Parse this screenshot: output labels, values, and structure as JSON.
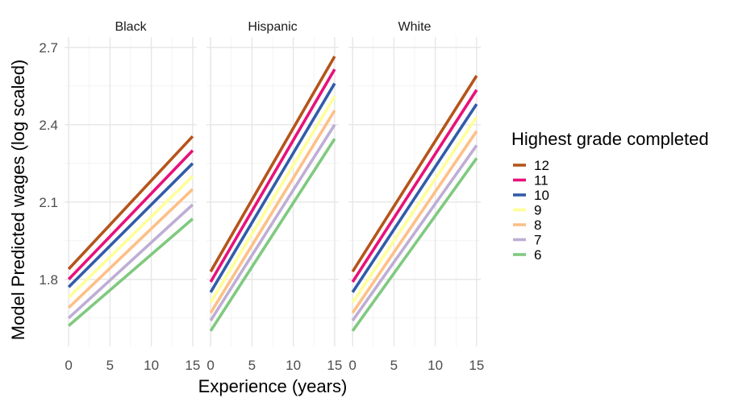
{
  "chart_data": {
    "type": "line",
    "xlabel": "Experience (years)",
    "ylabel": "Model Predicted wages (log scaled)",
    "xlim": [
      -0.5,
      15.5
    ],
    "ylim": [
      1.54,
      2.74
    ],
    "x_ticks": [
      0,
      5,
      10,
      15
    ],
    "x_tick_labels": [
      "0",
      "5",
      "10",
      "15"
    ],
    "y_ticks": [
      1.8,
      2.1,
      2.4,
      2.7
    ],
    "y_tick_labels": [
      "1.8",
      "2.1",
      "2.4",
      "2.7"
    ],
    "grid": true,
    "legend_title": "Highest grade completed",
    "legend_position": "right",
    "panels": [
      {
        "label": "Black",
        "series": [
          {
            "name": "12",
            "color": "#b5541b",
            "x": [
              0,
              15
            ],
            "y": [
              1.84,
              2.355
            ]
          },
          {
            "name": "11",
            "color": "#e7117a",
            "x": [
              0,
              15
            ],
            "y": [
              1.8,
              2.3
            ]
          },
          {
            "name": "10",
            "color": "#315ca8",
            "x": [
              0,
              15
            ],
            "y": [
              1.77,
              2.25
            ]
          },
          {
            "name": "9",
            "color": "#ffff99",
            "x": [
              0,
              15
            ],
            "y": [
              1.73,
              2.2
            ]
          },
          {
            "name": "8",
            "color": "#fdc086",
            "x": [
              0,
              15
            ],
            "y": [
              1.69,
              2.15
            ]
          },
          {
            "name": "7",
            "color": "#beaed4",
            "x": [
              0,
              15
            ],
            "y": [
              1.65,
              2.09
            ]
          },
          {
            "name": "6",
            "color": "#7fc97f",
            "x": [
              0,
              15
            ],
            "y": [
              1.62,
              2.035
            ]
          }
        ]
      },
      {
        "label": "Hispanic",
        "series": [
          {
            "name": "12",
            "color": "#b5541b",
            "x": [
              0,
              15
            ],
            "y": [
              1.83,
              2.665
            ]
          },
          {
            "name": "11",
            "color": "#e7117a",
            "x": [
              0,
              15
            ],
            "y": [
              1.79,
              2.615
            ]
          },
          {
            "name": "10",
            "color": "#315ca8",
            "x": [
              0,
              15
            ],
            "y": [
              1.75,
              2.56
            ]
          },
          {
            "name": "9",
            "color": "#ffff99",
            "x": [
              0,
              15
            ],
            "y": [
              1.71,
              2.51
            ]
          },
          {
            "name": "8",
            "color": "#fdc086",
            "x": [
              0,
              15
            ],
            "y": [
              1.67,
              2.455
            ]
          },
          {
            "name": "7",
            "color": "#beaed4",
            "x": [
              0,
              15
            ],
            "y": [
              1.64,
              2.4
            ]
          },
          {
            "name": "6",
            "color": "#7fc97f",
            "x": [
              0,
              15
            ],
            "y": [
              1.6,
              2.345
            ]
          }
        ]
      },
      {
        "label": "White",
        "series": [
          {
            "name": "12",
            "color": "#b5541b",
            "x": [
              0,
              15
            ],
            "y": [
              1.83,
              2.59
            ]
          },
          {
            "name": "11",
            "color": "#e7117a",
            "x": [
              0,
              15
            ],
            "y": [
              1.79,
              2.535
            ]
          },
          {
            "name": "10",
            "color": "#315ca8",
            "x": [
              0,
              15
            ],
            "y": [
              1.75,
              2.48
            ]
          },
          {
            "name": "9",
            "color": "#ffff99",
            "x": [
              0,
              15
            ],
            "y": [
              1.71,
              2.43
            ]
          },
          {
            "name": "8",
            "color": "#fdc086",
            "x": [
              0,
              15
            ],
            "y": [
              1.67,
              2.375
            ]
          },
          {
            "name": "7",
            "color": "#beaed4",
            "x": [
              0,
              15
            ],
            "y": [
              1.64,
              2.32
            ]
          },
          {
            "name": "6",
            "color": "#7fc97f",
            "x": [
              0,
              15
            ],
            "y": [
              1.6,
              2.27
            ]
          }
        ]
      }
    ],
    "legend": [
      {
        "label": "12",
        "color": "#b5541b"
      },
      {
        "label": "11",
        "color": "#e7117a"
      },
      {
        "label": "10",
        "color": "#315ca8"
      },
      {
        "label": "9",
        "color": "#ffff99"
      },
      {
        "label": "8",
        "color": "#fdc086"
      },
      {
        "label": "7",
        "color": "#beaed4"
      },
      {
        "label": "6",
        "color": "#7fc97f"
      }
    ]
  }
}
